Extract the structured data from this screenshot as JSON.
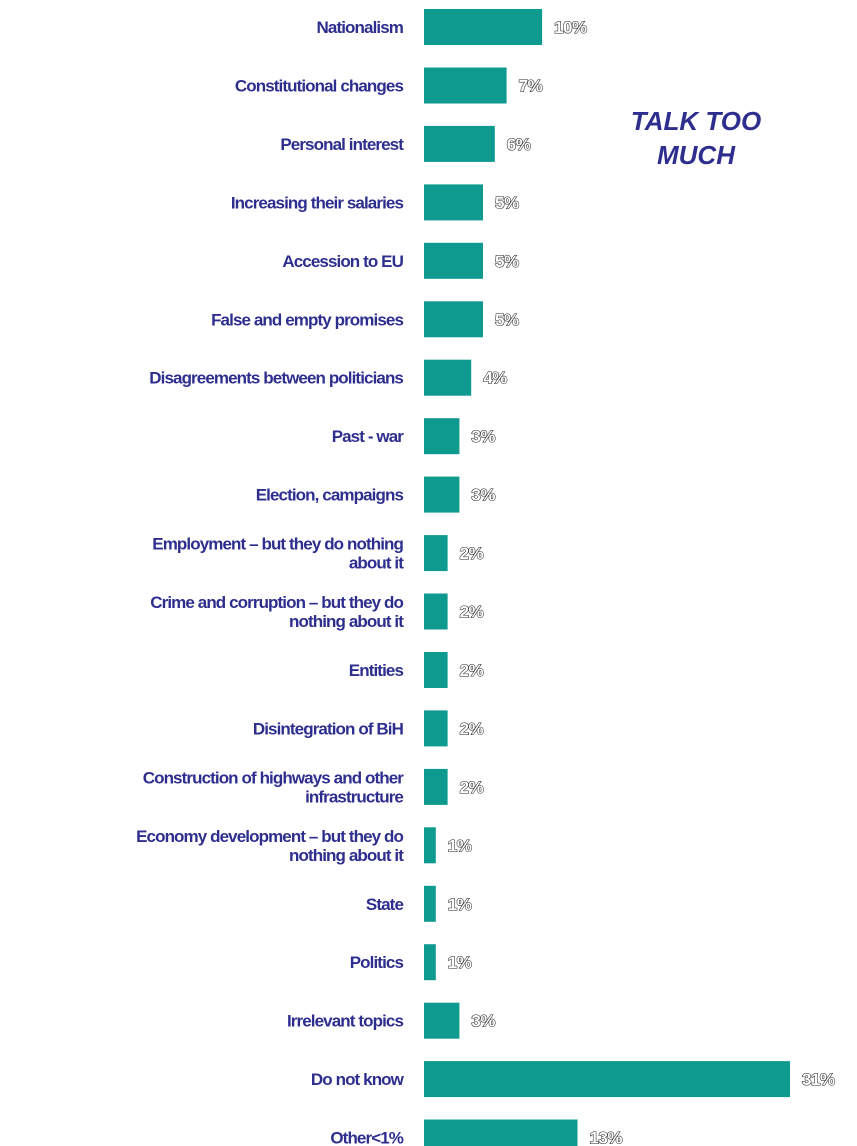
{
  "chart_data": {
    "type": "bar",
    "orientation": "horizontal",
    "title_lines": [
      "TALK TOO",
      "MUCH"
    ],
    "categories": [
      [
        "Nationalism"
      ],
      [
        "Constitutional changes"
      ],
      [
        "Personal interest"
      ],
      [
        "Increasing their salaries"
      ],
      [
        "Accession to EU"
      ],
      [
        "False and empty promises"
      ],
      [
        "Disagreements between politicians"
      ],
      [
        "Past - war"
      ],
      [
        "Election, campaigns"
      ],
      [
        "Employment – but they do nothing",
        "about it"
      ],
      [
        "Crime and corruption – but they do",
        "nothing about it"
      ],
      [
        "Entities"
      ],
      [
        "Disintegration of BiH"
      ],
      [
        "Construction of highways and other",
        "infrastructure"
      ],
      [
        "Economy development – but they do",
        "nothing about it"
      ],
      [
        "State"
      ],
      [
        "Politics"
      ],
      [
        "Irrelevant topics"
      ],
      [
        "Do not know"
      ],
      [
        "Other<1%"
      ]
    ],
    "values": [
      10,
      7,
      6,
      5,
      5,
      5,
      4,
      3,
      3,
      2,
      2,
      2,
      2,
      2,
      1,
      1,
      1,
      3,
      31,
      13
    ],
    "value_labels": [
      "10%",
      "7%",
      "6%",
      "5%",
      "5%",
      "5%",
      "4%",
      "3%",
      "3%",
      "2%",
      "2%",
      "2%",
      "2%",
      "2%",
      "1%",
      "1%",
      "1%",
      "3%",
      "31%",
      "13%"
    ],
    "colors": {
      "bar": "#0f9a8f",
      "category_text": "#2e2e8f",
      "title": "#2e2e8f"
    },
    "xlim": [
      0,
      31
    ],
    "grid": false,
    "legend": "none"
  }
}
